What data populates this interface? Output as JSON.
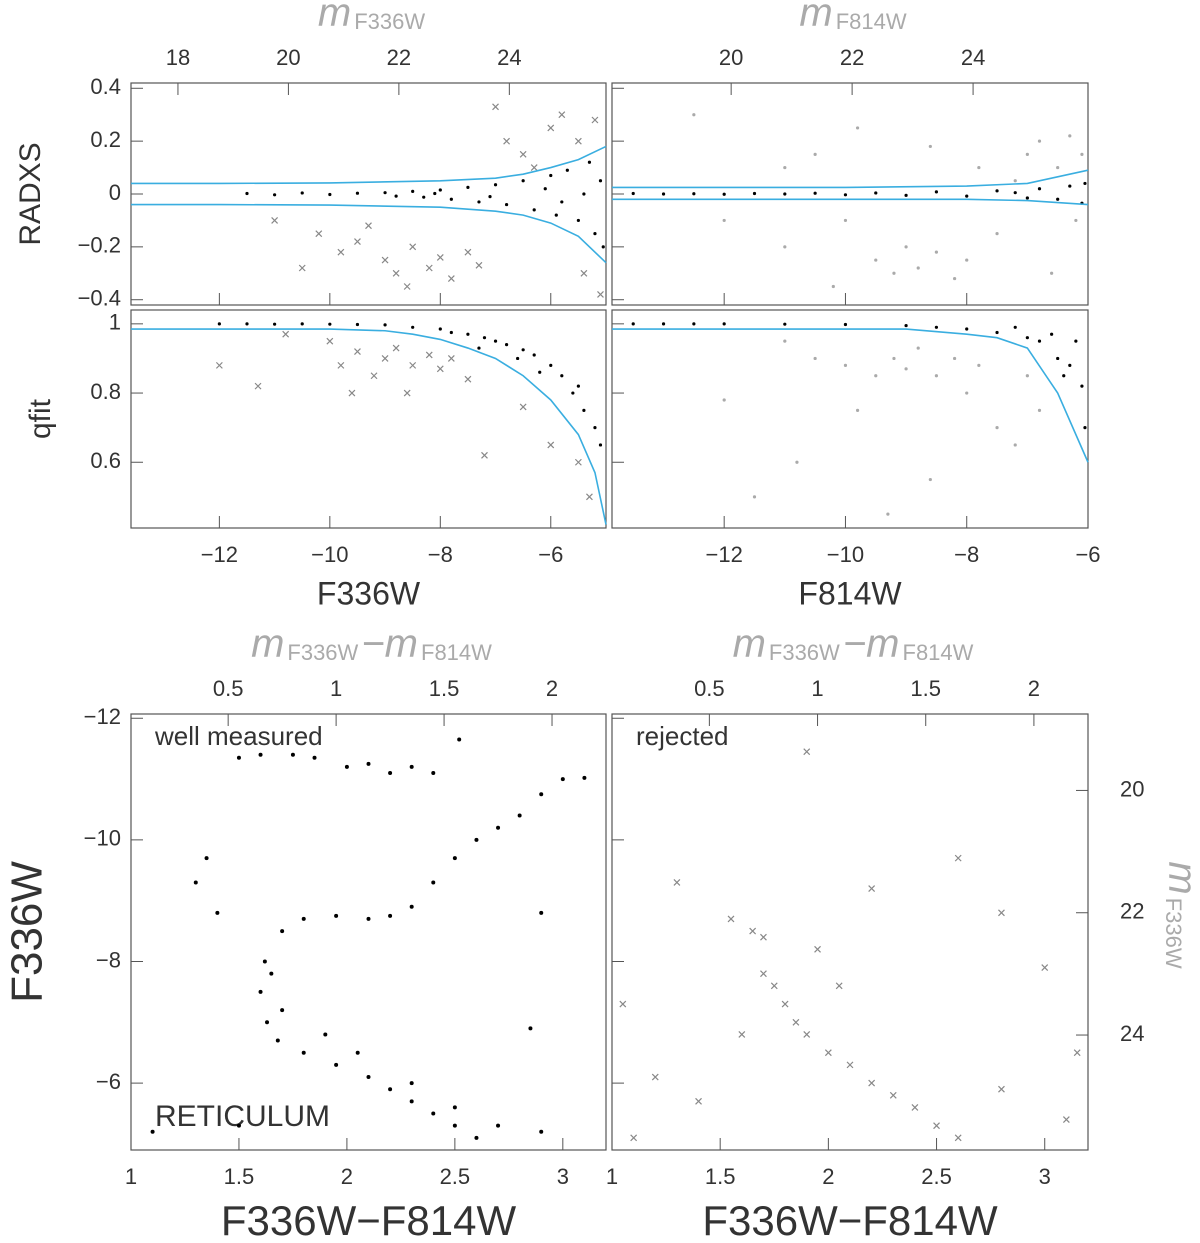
{
  "chart_data": [
    {
      "type": "scatter",
      "ylabel": "RADXS",
      "x2label": [
        "m",
        "F336W"
      ],
      "axis2_color": "#aaaaaa",
      "xtick_labels": false,
      "xlim": [
        -13.6,
        -5
      ],
      "xticks": [
        {
          "value": -12,
          "label": "−12"
        },
        {
          "value": -10,
          "label": "−10"
        },
        {
          "value": -8,
          "label": "−8"
        },
        {
          "value": -6,
          "label": "−6"
        }
      ],
      "x2lim": [
        17.15,
        25.75
      ],
      "x2ticks": [
        18,
        20,
        22,
        24
      ],
      "ylim": [
        -0.42,
        0.42
      ],
      "yticks": [
        {
          "value": -0.4,
          "label": "−0.4"
        },
        {
          "value": -0.2,
          "label": "−0.2"
        },
        0,
        0.2,
        0.4
      ],
      "series": [
        {
          "marker": "dot",
          "color": "#000000",
          "x": [
            -11.5,
            -11,
            -10.5,
            -10,
            -9.5,
            -9,
            -8.8,
            -8.5,
            -8.3,
            -8,
            -7.8,
            -7.5,
            -7.3,
            -7,
            -6.8,
            -6.5,
            -6.3,
            -6,
            -5.9,
            -5.7,
            -5.5,
            -5.3,
            -5.2,
            -5.1,
            -5.05,
            -6.1,
            -7.1,
            -8.1,
            -5.4,
            -5.8
          ],
          "values": [
            0.002,
            -0.003,
            0.004,
            -0.002,
            0.003,
            0.005,
            -0.008,
            0.01,
            -0.012,
            0.015,
            -0.02,
            0.025,
            -0.03,
            0.035,
            -0.04,
            0.05,
            -0.06,
            0.07,
            -0.08,
            0.09,
            -0.1,
            0.12,
            -0.15,
            0.05,
            -0.2,
            0.02,
            -0.01,
            0.002,
            0,
            -0.03
          ]
        },
        {
          "marker": "cross",
          "color": "#888888",
          "x": [
            -10.2,
            -9.8,
            -9.5,
            -9,
            -8.8,
            -8.5,
            -8.2,
            -8,
            -7.8,
            -7.5,
            -7.3,
            -9.3,
            -8.6,
            -6.8,
            -6.5,
            -6,
            -5.8,
            -5.5,
            -5.2,
            -6.3,
            -7,
            -5.4,
            -5.1,
            -11,
            -10.5
          ],
          "values": [
            -0.15,
            -0.22,
            -0.18,
            -0.25,
            -0.3,
            -0.2,
            -0.28,
            -0.24,
            -0.32,
            -0.22,
            -0.27,
            -0.12,
            -0.35,
            0.2,
            0.15,
            0.25,
            0.3,
            0.2,
            0.28,
            0.1,
            0.33,
            -0.3,
            -0.38,
            -0.1,
            -0.28
          ]
        },
        {
          "marker": "line",
          "color": "#3aaee0",
          "x": [
            -13.6,
            -12,
            -10,
            -8,
            -7,
            -6.5,
            -6,
            -5.5,
            -5
          ],
          "values": [
            0.04,
            0.04,
            0.042,
            0.05,
            0.06,
            0.075,
            0.1,
            0.13,
            0.18
          ]
        },
        {
          "marker": "line",
          "color": "#3aaee0",
          "x": [
            -13.6,
            -12,
            -10,
            -8,
            -7,
            -6.5,
            -6,
            -5.5,
            -5
          ],
          "values": [
            -0.04,
            -0.04,
            -0.042,
            -0.05,
            -0.065,
            -0.08,
            -0.11,
            -0.16,
            -0.26
          ]
        }
      ]
    },
    {
      "type": "scatter",
      "x2label": [
        "m",
        "F814W"
      ],
      "axis2_color": "#aaaaaa",
      "xtick_labels": false,
      "ytick_labels": false,
      "xlim": [
        -13.85,
        -6
      ],
      "xticks": [
        {
          "value": -12,
          "label": "−12"
        },
        {
          "value": -10,
          "label": "−10"
        },
        {
          "value": -8,
          "label": "−8"
        },
        {
          "value": -6,
          "label": "−6"
        }
      ],
      "x2lim": [
        18.03,
        25.9
      ],
      "x2ticks": [
        20,
        22,
        24
      ],
      "ylim": [
        -0.42,
        0.42
      ],
      "yticks": [
        {
          "value": -0.4,
          "label": "−0.4"
        },
        {
          "value": -0.2,
          "label": "−0.2"
        },
        0,
        0.2,
        0.4
      ],
      "series": [
        {
          "marker": "dot",
          "color": "#aaaaaa",
          "x": [
            -12.5,
            -11,
            -11,
            -10.5,
            -10,
            -9.5,
            -9.2,
            -9,
            -8.8,
            -8.5,
            -8.2,
            -8,
            -8.6,
            -7.8,
            -7.5,
            -7,
            -6.8,
            -6.5,
            -6.3,
            -6.1,
            -6.2,
            -6.6,
            -9.8,
            -10.2,
            -12,
            -7.2
          ],
          "values": [
            0.3,
            0.1,
            -0.2,
            0.15,
            -0.1,
            -0.25,
            -0.3,
            -0.2,
            -0.28,
            -0.22,
            -0.32,
            -0.25,
            0.18,
            0.1,
            -0.15,
            0.15,
            0.2,
            0.1,
            0.22,
            0.15,
            -0.1,
            -0.3,
            0.25,
            -0.35,
            -0.1,
            0.05
          ]
        },
        {
          "marker": "dot",
          "color": "#000000",
          "x": [
            -13.5,
            -13,
            -12.5,
            -12,
            -11.5,
            -11,
            -10.5,
            -10,
            -9.5,
            -9,
            -8.5,
            -8,
            -7.5,
            -7,
            -6.8,
            -6.5,
            -6.3,
            -6.1,
            -6.05,
            -7.2
          ],
          "values": [
            0.002,
            0,
            0.001,
            -0.001,
            0.002,
            0,
            0.003,
            -0.003,
            0.004,
            -0.005,
            0.008,
            -0.008,
            0.012,
            -0.015,
            0.02,
            -0.02,
            0.03,
            -0.035,
            0.04,
            0.005
          ]
        },
        {
          "marker": "line",
          "color": "#3aaee0",
          "x": [
            -13.85,
            -12,
            -10,
            -8,
            -7,
            -6
          ],
          "values": [
            0.025,
            0.025,
            0.025,
            0.03,
            0.04,
            0.09
          ]
        },
        {
          "marker": "line",
          "color": "#3aaee0",
          "x": [
            -13.85,
            -12,
            -10,
            -8,
            -7,
            -6
          ],
          "values": [
            -0.02,
            -0.02,
            -0.02,
            -0.02,
            -0.025,
            -0.04
          ]
        }
      ]
    },
    {
      "type": "scatter",
      "ylabel": "qfit",
      "xlabel": "F336W",
      "xlim": [
        -13.6,
        -5
      ],
      "xticks": [
        {
          "value": -12,
          "label": "−12"
        },
        {
          "value": -10,
          "label": "−10"
        },
        {
          "value": -8,
          "label": "−8"
        },
        {
          "value": -6,
          "label": "−6"
        }
      ],
      "ylim": [
        0.41,
        1.04
      ],
      "yticks": [
        0.6,
        0.8,
        1
      ],
      "series": [
        {
          "marker": "dot",
          "color": "#000000",
          "x": [
            -12,
            -11.5,
            -11,
            -10.5,
            -10,
            -9.5,
            -9,
            -8.5,
            -8,
            -7.8,
            -7.5,
            -7.2,
            -7,
            -6.8,
            -6.5,
            -6.3,
            -6,
            -5.8,
            -5.6,
            -5.4,
            -5.2,
            -5.1,
            -6.2,
            -7.3,
            -5.5,
            -6.6
          ],
          "values": [
            1,
            1,
            0.999,
            1,
            0.999,
            0.998,
            0.997,
            0.99,
            0.985,
            0.975,
            0.97,
            0.96,
            0.95,
            0.94,
            0.925,
            0.91,
            0.88,
            0.85,
            0.8,
            0.75,
            0.7,
            0.65,
            0.86,
            0.93,
            0.82,
            0.9
          ]
        },
        {
          "marker": "cross",
          "color": "#888888",
          "x": [
            -10,
            -9.8,
            -9.5,
            -9.2,
            -9,
            -8.8,
            -8.5,
            -8.2,
            -8,
            -7.8,
            -7.5,
            -8.6,
            -9.6,
            -10.8,
            -11.3,
            -12,
            -7.2,
            -6.5,
            -6,
            -5.5,
            -5.3
          ],
          "values": [
            0.95,
            0.88,
            0.92,
            0.85,
            0.9,
            0.93,
            0.88,
            0.91,
            0.87,
            0.9,
            0.84,
            0.8,
            0.8,
            0.97,
            0.82,
            0.88,
            0.62,
            0.76,
            0.65,
            0.6,
            0.5
          ]
        },
        {
          "marker": "line",
          "color": "#3aaee0",
          "x": [
            -13.6,
            -12,
            -10,
            -9,
            -8.5,
            -8,
            -7.5,
            -7,
            -6.5,
            -6,
            -5.5,
            -5.2,
            -5
          ],
          "values": [
            0.985,
            0.985,
            0.985,
            0.98,
            0.97,
            0.955,
            0.93,
            0.9,
            0.85,
            0.78,
            0.68,
            0.57,
            0.42
          ]
        }
      ]
    },
    {
      "type": "scatter",
      "xlabel": "F814W",
      "ytick_labels": false,
      "xlim": [
        -13.85,
        -6
      ],
      "xticks": [
        {
          "value": -12,
          "label": "−12"
        },
        {
          "value": -10,
          "label": "−10"
        },
        {
          "value": -8,
          "label": "−8"
        },
        {
          "value": -6,
          "label": "−6"
        }
      ],
      "ylim": [
        0.41,
        1.04
      ],
      "yticks": [
        0.6,
        0.8,
        1
      ],
      "series": [
        {
          "marker": "dot",
          "color": "#aaaaaa",
          "x": [
            -11,
            -10.5,
            -10,
            -9.8,
            -9.5,
            -9.2,
            -9,
            -8.8,
            -8.5,
            -8.2,
            -8,
            -7.8,
            -7.5,
            -7.2,
            -10.8,
            -12,
            -11.5,
            -9.3,
            -8.6,
            -6.8,
            -7
          ],
          "values": [
            0.95,
            0.9,
            0.88,
            0.75,
            0.85,
            0.9,
            0.87,
            0.93,
            0.85,
            0.9,
            0.8,
            0.88,
            0.7,
            0.65,
            0.6,
            0.78,
            0.5,
            0.45,
            0.55,
            0.75,
            0.85
          ]
        },
        {
          "marker": "dot",
          "color": "#000000",
          "x": [
            -13.5,
            -13,
            -12.5,
            -12,
            -11,
            -10,
            -9,
            -8.5,
            -8,
            -7.5,
            -7,
            -6.8,
            -6.5,
            -6.3,
            -6.1,
            -6.05,
            -6.6,
            -7.2,
            -6.2,
            -6.4
          ],
          "values": [
            1,
            1,
            1,
            1,
            0.999,
            0.998,
            0.995,
            0.99,
            0.985,
            0.975,
            0.96,
            0.95,
            0.9,
            0.88,
            0.82,
            0.7,
            0.97,
            0.99,
            0.95,
            0.85
          ]
        },
        {
          "marker": "line",
          "color": "#3aaee0",
          "x": [
            -13.85,
            -12,
            -10,
            -9,
            -8,
            -7.5,
            -7,
            -6.5,
            -6
          ],
          "values": [
            0.985,
            0.985,
            0.985,
            0.985,
            0.97,
            0.96,
            0.93,
            0.8,
            0.6
          ]
        }
      ]
    },
    {
      "type": "scatter",
      "xlabel": "F336W−F814W",
      "ylabel": "F336W",
      "x2label": [
        "m",
        "F336W",
        "−m",
        "F814W"
      ],
      "axis2_color": "#aaaaaa",
      "annotations": [
        {
          "text": "well measured",
          "color": "#222222"
        },
        {
          "text": "RETICULUM",
          "color": "#e8474f"
        }
      ],
      "xlim": [
        1,
        3.2
      ],
      "xticks": [
        1,
        1.5,
        2,
        2.5,
        3
      ],
      "x2lim": [
        0.05,
        2.25
      ],
      "x2ticks": [
        0.5,
        1,
        1.5,
        2
      ],
      "ylim": [
        -4.9,
        -12.07
      ],
      "yticks": [
        {
          "value": -12,
          "label": "−12"
        },
        {
          "value": -10,
          "label": "−10"
        },
        {
          "value": -8,
          "label": "−8"
        },
        {
          "value": -6,
          "label": "−6"
        }
      ],
      "series": [
        {
          "marker": "dot",
          "color": "#000000",
          "x": [
            1.62,
            1.6,
            1.63,
            1.68,
            1.8,
            1.95,
            2.1,
            2.2,
            2.3,
            2.4,
            2.5,
            2.6,
            1.7,
            1.9,
            2.05,
            2.3,
            2.5,
            2.7,
            1.65,
            1.7,
            1.8,
            1.95,
            2.1,
            2.2,
            2.3,
            2.4,
            2.5,
            2.6,
            2.7,
            2.8,
            2.9,
            3.0,
            3.1,
            1.5,
            1.6,
            1.75,
            1.85,
            2.0,
            2.1,
            2.2,
            2.3,
            2.4,
            2.52,
            1.35,
            1.3,
            1.4,
            2.85,
            2.9,
            1.1,
            1.5,
            2.9
          ],
          "values": [
            -8,
            -7.5,
            -7,
            -6.7,
            -6.5,
            -6.3,
            -6.1,
            -5.9,
            -5.7,
            -5.5,
            -5.3,
            -5.1,
            -7.2,
            -6.8,
            -6.5,
            -6,
            -5.6,
            -5.3,
            -7.8,
            -8.5,
            -8.7,
            -8.75,
            -8.7,
            -8.75,
            -8.9,
            -9.3,
            -9.7,
            -10,
            -10.2,
            -10.4,
            -10.75,
            -11,
            -11.02,
            -11.35,
            -11.4,
            -11.4,
            -11.35,
            -11.2,
            -11.25,
            -11.1,
            -11.2,
            -11.1,
            -11.65,
            -9.7,
            -9.3,
            -8.8,
            -6.9,
            -8.8,
            -5.2,
            -5.3,
            -5.2
          ]
        }
      ]
    },
    {
      "type": "scatter",
      "xlabel": "F336W−F814W",
      "x2label": [
        "m",
        "F336W",
        "−m",
        "F814W"
      ],
      "y2label": [
        "m",
        "F336W"
      ],
      "axis2_color": "#aaaaaa",
      "ytick_labels": false,
      "annotations": [
        {
          "text": "rejected",
          "color": "#222222"
        }
      ],
      "xlim": [
        1,
        3.2
      ],
      "xticks": [
        1,
        1.5,
        2,
        2.5,
        3
      ],
      "x2lim": [
        0.05,
        2.25
      ],
      "x2ticks": [
        0.5,
        1,
        1.5,
        2
      ],
      "ylim": [
        -4.9,
        -12.07
      ],
      "yticks": [
        {
          "value": -12,
          "label": "−12"
        },
        {
          "value": -10,
          "label": "−10"
        },
        {
          "value": -8,
          "label": "−8"
        },
        {
          "value": -6,
          "label": "−6"
        }
      ],
      "y2lim": [
        25.88,
        18.75
      ],
      "y2ticks": [
        20,
        22,
        24
      ],
      "series": [
        {
          "marker": "cross",
          "color": "#888888",
          "x": [
            1.9,
            1.3,
            2.6,
            2.2,
            2.8,
            3.0,
            1.55,
            1.65,
            1.7,
            1.75,
            1.8,
            1.85,
            1.9,
            2.0,
            2.1,
            2.2,
            2.3,
            2.4,
            2.5,
            2.6,
            1.7,
            1.6,
            1.2,
            1.4,
            1.05,
            1.1,
            2.8,
            3.1,
            3.15,
            1.95,
            2.05
          ],
          "values": [
            -11.45,
            -9.3,
            -9.7,
            -9.2,
            -8.8,
            -7.9,
            -8.7,
            -8.5,
            -8.4,
            -7.6,
            -7.3,
            -7,
            -6.8,
            -6.5,
            -6.3,
            -6,
            -5.8,
            -5.6,
            -5.3,
            -5.1,
            -7.8,
            -6.8,
            -6.1,
            -5.7,
            -7.3,
            -5.1,
            -5.9,
            -5.4,
            -6.5,
            -8.2,
            -7.6
          ]
        }
      ]
    }
  ]
}
